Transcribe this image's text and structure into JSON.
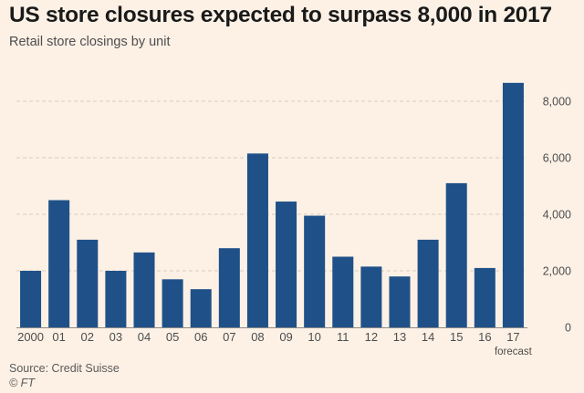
{
  "chart_data": {
    "type": "bar",
    "title": "US store closures expected to surpass 8,000 in 2017",
    "subtitle": "Retail store closings by unit",
    "categories": [
      "2000",
      "01",
      "02",
      "03",
      "04",
      "05",
      "06",
      "07",
      "08",
      "09",
      "10",
      "11",
      "12",
      "13",
      "14",
      "15",
      "16",
      "17"
    ],
    "category_note": {
      "index": 17,
      "text": "forecast"
    },
    "values": [
      2000,
      4500,
      3100,
      2000,
      2650,
      1700,
      1350,
      2800,
      6150,
      4450,
      3950,
      2500,
      2150,
      1800,
      3100,
      5100,
      2100,
      8650
    ],
    "yticks": [
      0,
      2000,
      4000,
      6000,
      8000
    ],
    "ytick_labels": [
      "0",
      "2,000",
      "4,000",
      "6,000",
      "8,000"
    ],
    "ylim": [
      0,
      9000
    ],
    "yaxis_position": "right",
    "grid": true,
    "bar_color": "#1f5188",
    "grid_color": "#d9cdc1",
    "axis_color": "#8a8a8a",
    "label_color": "#4d4d4d"
  },
  "source": "Source: Credit Suisse",
  "credit": "© FT"
}
